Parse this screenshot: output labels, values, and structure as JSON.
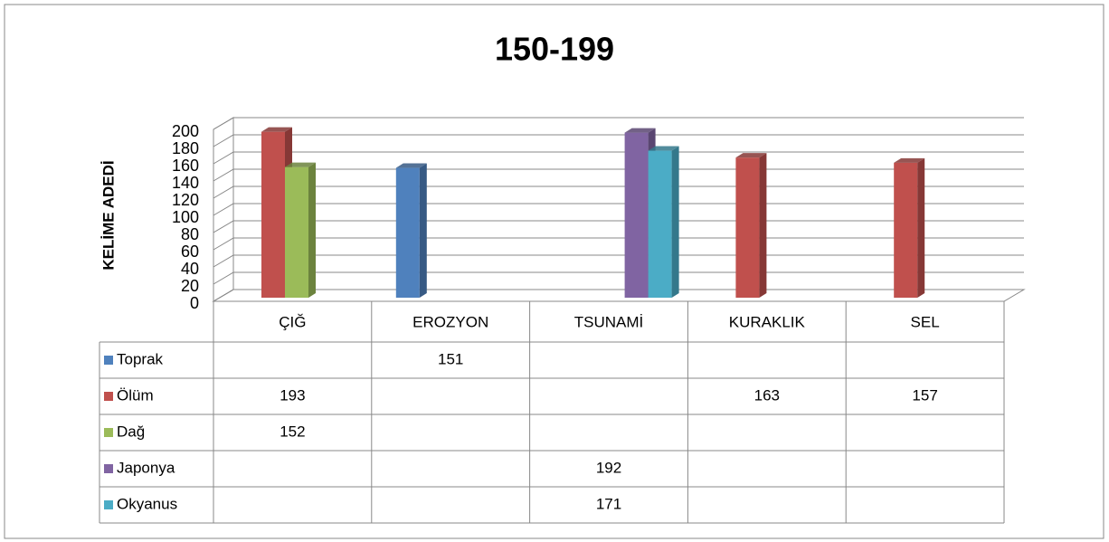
{
  "chart_data": {
    "type": "bar3d",
    "title": "150-199",
    "y_label": "KELİME ADEDİ",
    "categories": [
      "ÇIĞ",
      "EROZYON",
      "TSUNAMİ",
      "KURAKLIK",
      "SEL"
    ],
    "series": [
      {
        "name": "Toprak",
        "color": "#4f81bd",
        "values": [
          null,
          151,
          null,
          null,
          null
        ]
      },
      {
        "name": "Ölüm",
        "color": "#c0504d",
        "values": [
          193,
          null,
          null,
          163,
          157
        ]
      },
      {
        "name": "Dağ",
        "color": "#9bbb59",
        "values": [
          152,
          null,
          null,
          null,
          null
        ]
      },
      {
        "name": "Japonya",
        "color": "#8064a2",
        "values": [
          null,
          null,
          192,
          null,
          null
        ]
      },
      {
        "name": "Okyanus",
        "color": "#4bacc6",
        "values": [
          null,
          null,
          171,
          null,
          null
        ]
      }
    ],
    "ylim": [
      0,
      200
    ],
    "yticks": [
      0,
      20,
      40,
      60,
      80,
      100,
      120,
      140,
      160,
      180,
      200
    ],
    "grid": true,
    "data_table": true
  }
}
